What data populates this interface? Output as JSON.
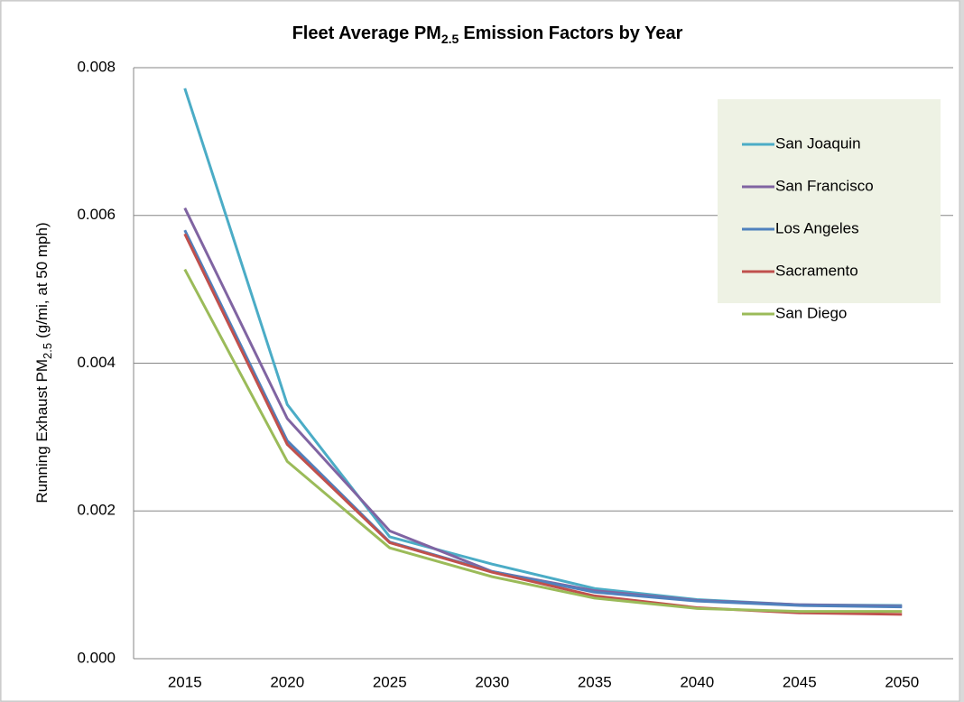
{
  "chart_data": {
    "type": "line",
    "title": {
      "text": "Fleet Average PM",
      "subscript": "2.5",
      "suffix": "Emission Factors by Year"
    },
    "y_label": {
      "text": "Running Exhaust PM",
      "subscript": "2.5",
      "suffix": "(g/mi, at 50 mph)"
    },
    "categories": [
      "2015",
      "2020",
      "2025",
      "2030",
      "2035",
      "2040",
      "2045",
      "2050"
    ],
    "series": [
      {
        "name": "San Joaquin",
        "color": "#4bacc6",
        "values": [
          0.00772,
          0.00344,
          0.00165,
          0.00128,
          0.00095,
          0.0008,
          0.00073,
          0.00072
        ]
      },
      {
        "name": "San Francisco",
        "color": "#8064a2",
        "values": [
          0.0061,
          0.00325,
          0.00173,
          0.00118,
          0.00092,
          0.00079,
          0.00073,
          0.00071
        ]
      },
      {
        "name": "Los Angeles",
        "color": "#4f81bd",
        "values": [
          0.0058,
          0.00295,
          0.00158,
          0.00118,
          0.0009,
          0.00078,
          0.00072,
          0.0007
        ]
      },
      {
        "name": "Sacramento",
        "color": "#c0504d",
        "values": [
          0.00575,
          0.0029,
          0.00157,
          0.00117,
          0.00085,
          0.00069,
          0.00062,
          0.0006
        ]
      },
      {
        "name": "San Diego",
        "color": "#9bbb59",
        "values": [
          0.00527,
          0.00267,
          0.0015,
          0.00111,
          0.00082,
          0.00068,
          0.00064,
          0.00064
        ]
      }
    ],
    "ylim": [
      0,
      0.008
    ],
    "yticks": [
      {
        "value": 0,
        "label": "0.000"
      },
      0.002,
      0.004,
      0.006,
      0.008
    ],
    "grid": true,
    "legend": "upper right"
  }
}
